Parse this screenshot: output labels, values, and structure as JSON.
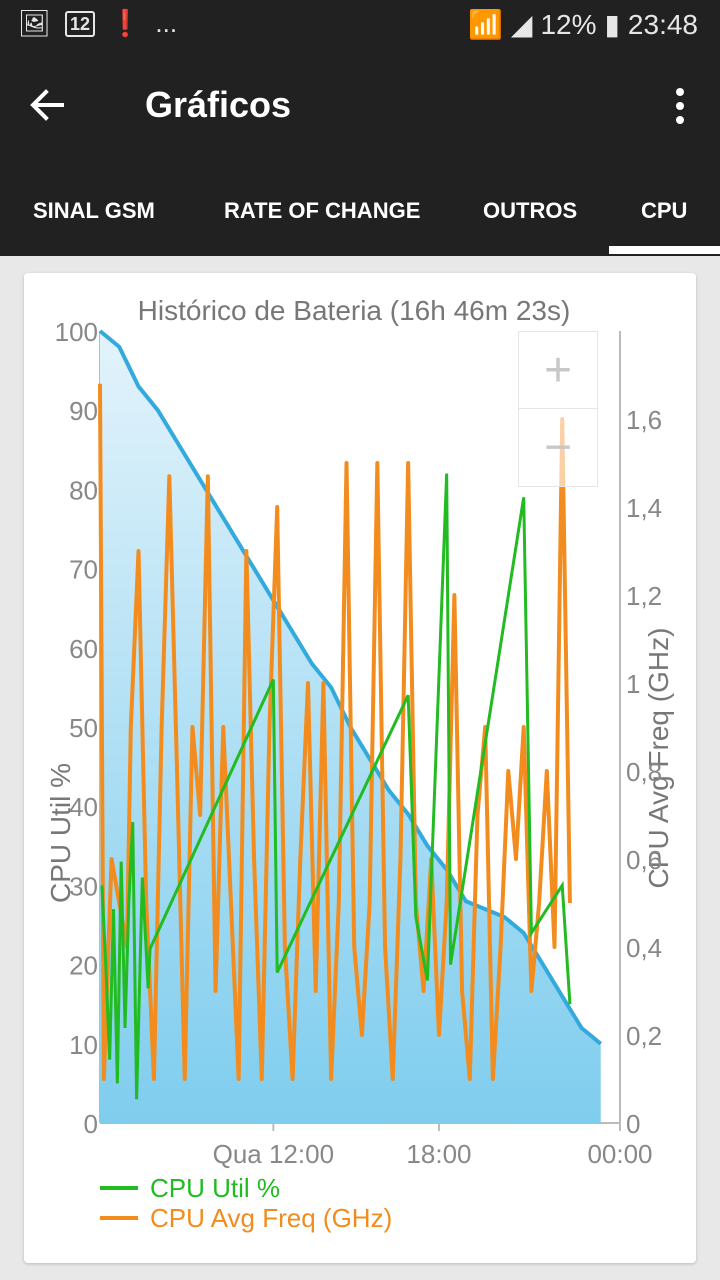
{
  "status": {
    "notif_badge": "12",
    "dots": "...",
    "battery": "12%",
    "time": "23:48"
  },
  "app": {
    "title": "Gráficos"
  },
  "tabs": [
    {
      "label": "SINAL GSM"
    },
    {
      "label": "RATE OF CHANGE"
    },
    {
      "label": "OUTROS"
    },
    {
      "label": "CPU",
      "selected": true
    }
  ],
  "zoom": {
    "in": "+",
    "out": "−"
  },
  "chart_data": {
    "type": "line",
    "title": "Histórico de Bateria (16h 46m 23s)",
    "ylabel_left": "CPU Util %",
    "ylabel_right": "CPU Avg Freq (GHz)",
    "left_ticks": [
      "0",
      "10",
      "20",
      "30",
      "40",
      "50",
      "60",
      "70",
      "80",
      "90",
      "100"
    ],
    "right_ticks": [
      "0",
      "0,2",
      "0,4",
      "0,6",
      "0,8",
      "1",
      "1,2",
      "1,4",
      "1,6"
    ],
    "x_ticks": [
      "Qua 12:00",
      "18:00",
      "00:00"
    ],
    "ylim_left": [
      0,
      100
    ],
    "ylim_right": [
      0,
      1.8
    ],
    "colors": {
      "battery": "#33aadd",
      "cpu_util": "#22bb22",
      "cpu_freq": "#f28c1e"
    },
    "battery_pct": [
      [
        0,
        100
      ],
      [
        0.05,
        98
      ],
      [
        0.1,
        93
      ],
      [
        0.15,
        90
      ],
      [
        0.2,
        86
      ],
      [
        0.25,
        82
      ],
      [
        0.3,
        78
      ],
      [
        0.35,
        74
      ],
      [
        0.4,
        70
      ],
      [
        0.45,
        66
      ],
      [
        0.5,
        62
      ],
      [
        0.55,
        58
      ],
      [
        0.6,
        55
      ],
      [
        0.65,
        50
      ],
      [
        0.7,
        46
      ],
      [
        0.75,
        42
      ],
      [
        0.8,
        39
      ],
      [
        0.85,
        35
      ],
      [
        0.9,
        32
      ],
      [
        0.95,
        28
      ],
      [
        1,
        27
      ],
      [
        1.05,
        26
      ],
      [
        1.1,
        24
      ],
      [
        1.15,
        20
      ],
      [
        1.2,
        16
      ],
      [
        1.25,
        12
      ],
      [
        1.3,
        10
      ]
    ],
    "cpu_util_pct": [
      [
        0.005,
        30
      ],
      [
        0.015,
        20
      ],
      [
        0.025,
        8
      ],
      [
        0.035,
        27
      ],
      [
        0.045,
        5
      ],
      [
        0.055,
        33
      ],
      [
        0.065,
        12
      ],
      [
        0.075,
        28
      ],
      [
        0.085,
        38
      ],
      [
        0.095,
        3
      ],
      [
        0.11,
        31
      ],
      [
        0.125,
        17
      ],
      [
        0.13,
        22
      ],
      [
        0.45,
        56
      ],
      [
        0.46,
        19
      ],
      [
        0.8,
        54
      ],
      [
        0.82,
        26
      ],
      [
        0.85,
        18
      ],
      [
        0.9,
        82
      ],
      [
        0.91,
        20
      ],
      [
        1.1,
        79
      ],
      [
        1.12,
        24
      ],
      [
        1.2,
        30
      ],
      [
        1.22,
        15
      ]
    ],
    "cpu_freq_ghz": [
      [
        0,
        1.68
      ],
      [
        0.01,
        0.1
      ],
      [
        0.03,
        0.6
      ],
      [
        0.05,
        0.5
      ],
      [
        0.07,
        0.4
      ],
      [
        0.08,
        0.9
      ],
      [
        0.1,
        1.3
      ],
      [
        0.12,
        0.5
      ],
      [
        0.14,
        0.1
      ],
      [
        0.16,
        0.9
      ],
      [
        0.18,
        1.47
      ],
      [
        0.2,
        0.8
      ],
      [
        0.22,
        0.1
      ],
      [
        0.24,
        0.9
      ],
      [
        0.26,
        0.7
      ],
      [
        0.28,
        1.47
      ],
      [
        0.3,
        0.3
      ],
      [
        0.32,
        0.9
      ],
      [
        0.34,
        0.5
      ],
      [
        0.36,
        0.1
      ],
      [
        0.38,
        1.3
      ],
      [
        0.4,
        0.6
      ],
      [
        0.42,
        0.1
      ],
      [
        0.44,
        0.9
      ],
      [
        0.46,
        1.4
      ],
      [
        0.48,
        0.4
      ],
      [
        0.5,
        0.1
      ],
      [
        0.52,
        0.6
      ],
      [
        0.54,
        1.0
      ],
      [
        0.56,
        0.3
      ],
      [
        0.58,
        1.0
      ],
      [
        0.6,
        0.1
      ],
      [
        0.62,
        0.5
      ],
      [
        0.64,
        1.5
      ],
      [
        0.66,
        0.4
      ],
      [
        0.68,
        0.2
      ],
      [
        0.7,
        0.5
      ],
      [
        0.72,
        1.5
      ],
      [
        0.74,
        0.4
      ],
      [
        0.76,
        0.1
      ],
      [
        0.78,
        0.6
      ],
      [
        0.8,
        1.5
      ],
      [
        0.82,
        0.5
      ],
      [
        0.84,
        0.3
      ],
      [
        0.86,
        0.6
      ],
      [
        0.88,
        0.2
      ],
      [
        0.9,
        0.5
      ],
      [
        0.92,
        1.2
      ],
      [
        0.94,
        0.3
      ],
      [
        0.96,
        0.1
      ],
      [
        0.98,
        0.7
      ],
      [
        1.0,
        0.9
      ],
      [
        1.02,
        0.1
      ],
      [
        1.04,
        0.4
      ],
      [
        1.06,
        0.8
      ],
      [
        1.08,
        0.6
      ],
      [
        1.1,
        0.9
      ],
      [
        1.12,
        0.3
      ],
      [
        1.14,
        0.5
      ],
      [
        1.16,
        0.8
      ],
      [
        1.18,
        0.4
      ],
      [
        1.2,
        1.6
      ],
      [
        1.22,
        0.5
      ]
    ]
  },
  "legend": {
    "cpu_util": "CPU Util %",
    "cpu_freq": "CPU Avg Freq (GHz)"
  }
}
